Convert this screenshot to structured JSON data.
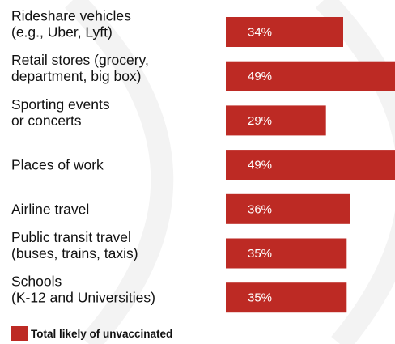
{
  "chart_data": {
    "type": "bar",
    "orientation": "horizontal",
    "categories": [
      [
        "Rideshare vehicles",
        "(e.g., Uber, Lyft)"
      ],
      [
        "Retail stores (grocery,",
        "department, big box)"
      ],
      [
        "Sporting events",
        "or concerts"
      ],
      [
        "Places of work"
      ],
      [
        "Airline travel"
      ],
      [
        "Public transit travel",
        "(buses, trains, taxis)"
      ],
      [
        "Schools",
        "(K-12 and Universities)"
      ]
    ],
    "series": [
      {
        "name": "Total likely of unvaccinated",
        "values": [
          34,
          49,
          29,
          49,
          36,
          35,
          35
        ],
        "labels": [
          "34%",
          "49%",
          "29%",
          "49%",
          "36%",
          "35%",
          "35%"
        ],
        "color": "#bd2a24"
      }
    ],
    "xlim": [
      0,
      49
    ],
    "legend": "bottom-left",
    "grid": false
  },
  "legend": {
    "label": "Total likely of unvaccinated",
    "color": "#bd2a24"
  },
  "colors": {
    "bar": "#bd2a24",
    "decorative_arc": "#f3f3f3"
  }
}
